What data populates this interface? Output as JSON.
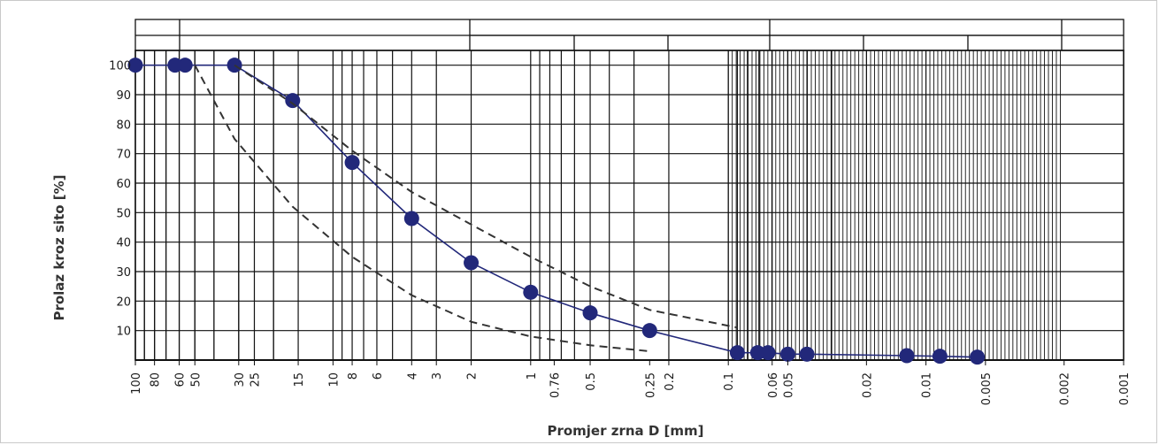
{
  "chart_data": {
    "type": "line",
    "title": "",
    "xlabel": "Promjer zrna D [mm]",
    "ylabel": "Prolaz kroz sito [%]",
    "x_scale": "log-reversed",
    "xlim": [
      100,
      0.001
    ],
    "ylim": [
      0,
      105
    ],
    "grid": true,
    "x_tick_labels": [
      "100",
      "80",
      "60",
      "50",
      "30",
      "25",
      "15",
      "10",
      "8",
      "6",
      "4",
      "3",
      "2",
      "1",
      "0.76",
      "0.5",
      "0.25",
      "0.2",
      "0.1",
      "0.06",
      "0.05",
      "0.02",
      "0.01",
      "0.005",
      "0.002",
      "0.001"
    ],
    "y_tick_labels": [
      "10",
      "20",
      "30",
      "40",
      "50",
      "60",
      "70",
      "80",
      "90",
      "100"
    ],
    "series": [
      {
        "name": "",
        "style": "solid-markers",
        "color": "#22287a",
        "x": [
          100,
          63,
          56,
          31.5,
          16,
          8,
          4,
          2,
          1,
          0.5,
          0.25,
          0.09,
          0.071,
          0.063,
          0.05,
          0.04,
          0.0125,
          0.0085,
          0.0055
        ],
        "y": [
          100,
          100,
          100,
          100,
          88,
          67,
          48,
          33,
          23,
          16,
          10,
          2.5,
          2.5,
          2.5,
          2,
          2,
          1.5,
          1.3,
          1
        ]
      },
      {
        "name": "",
        "style": "dashed",
        "color": "#333333",
        "x": [
          31.5,
          16,
          8,
          4,
          2,
          1,
          0.5,
          0.25,
          0.09
        ],
        "y": [
          100,
          87,
          71,
          57,
          46,
          35,
          25,
          17,
          11
        ]
      },
      {
        "name": "",
        "style": "dashed",
        "color": "#333333",
        "x": [
          50,
          31.5,
          16,
          8,
          4,
          2,
          1,
          0.5,
          0.25
        ],
        "y": [
          100,
          75,
          52,
          35,
          22,
          13,
          8,
          5,
          3
        ]
      }
    ]
  }
}
